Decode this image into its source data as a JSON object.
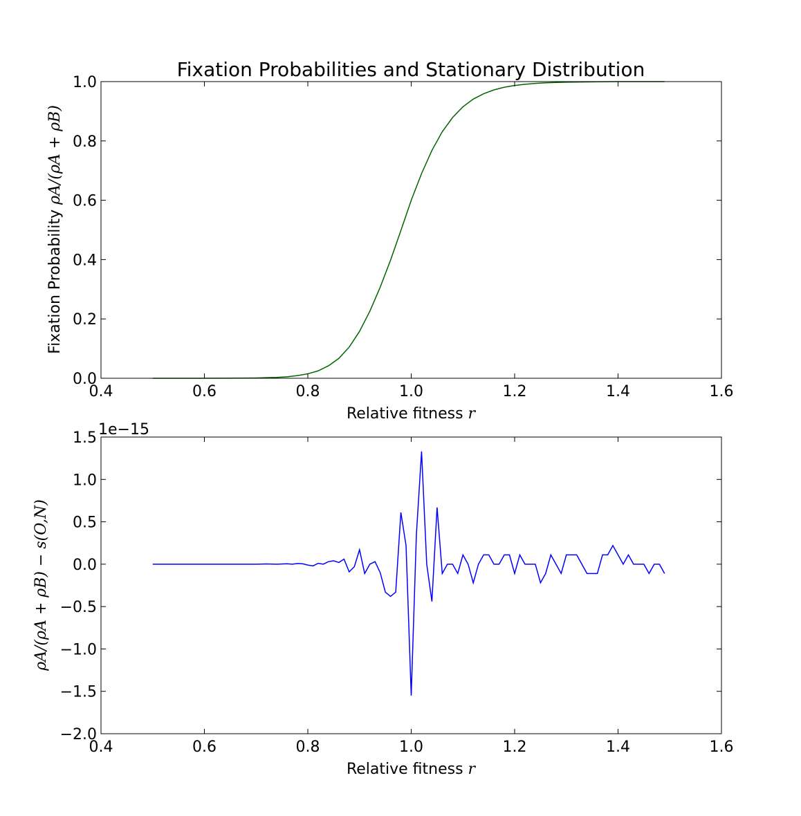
{
  "colors": {
    "top_series": "#006400",
    "bottom_series": "#0000ff",
    "axes": "#000000",
    "background": "#ffffff"
  },
  "chart_data": [
    {
      "type": "line",
      "title": "Fixation Probabilities and Stationary Distribution",
      "xlabel_text": "Relative fitness ",
      "xlabel_math": "r",
      "ylabel_text": "Fixation Probability ",
      "ylabel_math": "ρA/(ρA + ρB)",
      "xlim": [
        0.4,
        1.6
      ],
      "ylim": [
        0.0,
        1.0
      ],
      "xticks": [
        0.4,
        0.6,
        0.8,
        1.0,
        1.2,
        1.4,
        1.6
      ],
      "xtick_labels": [
        "0.4",
        "0.6",
        "0.8",
        "1.0",
        "1.2",
        "1.4",
        "1.6"
      ],
      "yticks": [
        0.0,
        0.2,
        0.4,
        0.6,
        0.8,
        1.0
      ],
      "ytick_labels": [
        "0.0",
        "0.2",
        "0.4",
        "0.6",
        "0.8",
        "1.0"
      ],
      "grid": false,
      "series": [
        {
          "color": "#006400",
          "x": [
            0.5,
            0.55,
            0.6,
            0.65,
            0.7,
            0.72,
            0.74,
            0.76,
            0.78,
            0.8,
            0.82,
            0.84,
            0.86,
            0.88,
            0.9,
            0.92,
            0.94,
            0.96,
            0.98,
            1.0,
            1.02,
            1.04,
            1.06,
            1.08,
            1.1,
            1.12,
            1.14,
            1.16,
            1.18,
            1.2,
            1.22,
            1.24,
            1.26,
            1.28,
            1.3,
            1.35,
            1.4,
            1.45,
            1.49
          ],
          "y": [
            0.0,
            0.0,
            0.0001,
            0.0004,
            0.001,
            0.002,
            0.003,
            0.005,
            0.009,
            0.015,
            0.025,
            0.042,
            0.067,
            0.105,
            0.158,
            0.226,
            0.307,
            0.398,
            0.498,
            0.6,
            0.69,
            0.768,
            0.831,
            0.879,
            0.915,
            0.941,
            0.959,
            0.972,
            0.981,
            0.987,
            0.991,
            0.994,
            0.996,
            0.997,
            0.998,
            0.999,
            1.0,
            1.0,
            1.0
          ]
        }
      ]
    },
    {
      "type": "line",
      "xlabel_text": "Relative fitness ",
      "xlabel_math": "r",
      "ylabel_math": "ρA/(ρA + ρB) − s(O,N)",
      "offset_text": "1e−15",
      "xlim": [
        0.4,
        1.6
      ],
      "ylim": [
        -2.0,
        1.5
      ],
      "xticks": [
        0.4,
        0.6,
        0.8,
        1.0,
        1.2,
        1.4,
        1.6
      ],
      "xtick_labels": [
        "0.4",
        "0.6",
        "0.8",
        "1.0",
        "1.2",
        "1.4",
        "1.6"
      ],
      "yticks": [
        -2.0,
        -1.5,
        -1.0,
        -0.5,
        0.0,
        0.5,
        1.0,
        1.5
      ],
      "ytick_labels": [
        "−2.0",
        "−1.5",
        "−1.0",
        "−0.5",
        "0.0",
        "0.5",
        "1.0",
        "1.5"
      ],
      "grid": false,
      "series": [
        {
          "color": "#0000ff",
          "x": [
            0.5,
            0.55,
            0.6,
            0.65,
            0.7,
            0.72,
            0.74,
            0.76,
            0.77,
            0.78,
            0.79,
            0.8,
            0.81,
            0.82,
            0.83,
            0.84,
            0.85,
            0.86,
            0.87,
            0.88,
            0.89,
            0.9,
            0.91,
            0.92,
            0.93,
            0.94,
            0.95,
            0.96,
            0.97,
            0.98,
            0.99,
            1.0,
            1.01,
            1.02,
            1.03,
            1.04,
            1.05,
            1.06,
            1.07,
            1.08,
            1.09,
            1.1,
            1.11,
            1.12,
            1.13,
            1.14,
            1.15,
            1.16,
            1.17,
            1.18,
            1.19,
            1.2,
            1.21,
            1.22,
            1.23,
            1.24,
            1.25,
            1.26,
            1.27,
            1.28,
            1.29,
            1.3,
            1.31,
            1.32,
            1.33,
            1.34,
            1.35,
            1.36,
            1.37,
            1.38,
            1.39,
            1.4,
            1.41,
            1.42,
            1.43,
            1.44,
            1.45,
            1.46,
            1.47,
            1.48,
            1.49
          ],
          "y": [
            0.0,
            0.0,
            0.0,
            0.0,
            0.0,
            0.003,
            0.0,
            0.005,
            0.0,
            0.008,
            0.005,
            -0.01,
            -0.02,
            0.01,
            0.0,
            0.03,
            0.04,
            0.02,
            0.06,
            -0.09,
            -0.03,
            0.17,
            -0.11,
            0.0,
            0.03,
            -0.1,
            -0.33,
            -0.38,
            -0.33,
            0.61,
            0.22,
            -1.55,
            0.35,
            1.33,
            0.0,
            -0.44,
            0.67,
            -0.11,
            0.0,
            0.0,
            -0.11,
            0.11,
            0.0,
            -0.22,
            0.0,
            0.11,
            0.11,
            0.0,
            0.0,
            0.11,
            0.11,
            -0.11,
            0.11,
            0.0,
            0.0,
            0.0,
            -0.22,
            -0.11,
            0.11,
            0.0,
            -0.11,
            0.11,
            0.11,
            0.11,
            0.0,
            -0.11,
            -0.11,
            -0.11,
            0.11,
            0.11,
            0.22,
            0.11,
            0.0,
            0.11,
            0.0,
            0.0,
            0.0,
            -0.11,
            0.0,
            0.0,
            -0.11
          ]
        }
      ]
    }
  ]
}
